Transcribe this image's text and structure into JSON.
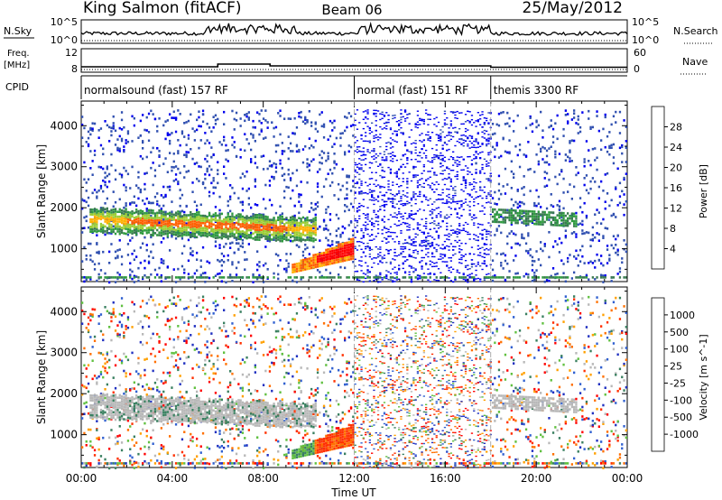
{
  "header": {
    "station": "King Salmon (fitACF)",
    "beam": "Beam 06",
    "date": "25/May/2012"
  },
  "top_panels": {
    "nsky_label": "N.Sky",
    "nsky_ticks": [
      "10^5",
      "10^0"
    ],
    "nsearch_label": "N.Search",
    "nsearch_ticks": [
      "10^5",
      "10^0"
    ],
    "freq_label_1": "Freq.",
    "freq_label_2": "[MHz]",
    "freq_ticks": [
      "12",
      "8"
    ],
    "nave_label": "Nave",
    "nave_ticks": [
      "60",
      "0"
    ],
    "cpid_label": "CPID"
  },
  "cpid_segments": [
    {
      "name": "normalsound (fast) 157 RF",
      "start_h": 0,
      "end_h": 12
    },
    {
      "name": "normal (fast) 151 RF",
      "start_h": 12,
      "end_h": 18
    },
    {
      "name": "themis 3300 RF",
      "start_h": 18,
      "end_h": 24
    }
  ],
  "chart_data": [
    {
      "type": "heatmap",
      "title": "Power",
      "ylabel": "Slant Range [km]",
      "xlabel": "Time UT",
      "ylim": [
        200,
        4600
      ],
      "y_ticks": [
        "4000",
        "3000",
        "2000",
        "1000"
      ],
      "y_tick_values": [
        4000,
        3000,
        2000,
        1000
      ],
      "x_ticks": [
        "00:00",
        "04:00",
        "08:00",
        "12:00",
        "16:00",
        "20:00",
        "00:00"
      ],
      "x_tick_values": [
        0,
        4,
        8,
        12,
        16,
        20,
        24
      ],
      "colorbar": {
        "label": "Power [dB]",
        "ticks": [
          "28",
          "24",
          "20",
          "16",
          "12",
          "8",
          "4"
        ],
        "colors": [
          "#0000ee",
          "#3050b0",
          "#3a7a50",
          "#2f9b3f",
          "#9acd32",
          "#ffb000",
          "#ff6000",
          "#ff0000"
        ]
      },
      "features": [
        {
          "name": "main echo band",
          "t_start": 0.3,
          "t_end": 10.0,
          "range_start": 1800,
          "range_end": 1500
        },
        {
          "name": "strong echo",
          "t_start": 9.2,
          "t_end": 12.0,
          "range_start": 500,
          "range_end": 1100
        }
      ]
    },
    {
      "type": "heatmap",
      "title": "Velocity",
      "ylabel": "Slant Range [km]",
      "xlabel": "Time UT",
      "ylim": [
        200,
        4600
      ],
      "y_ticks": [
        "4000",
        "3000",
        "2000",
        "1000"
      ],
      "y_tick_values": [
        4000,
        3000,
        2000,
        1000
      ],
      "x_ticks": [
        "00:00",
        "04:00",
        "08:00",
        "12:00",
        "16:00",
        "20:00",
        "00:00"
      ],
      "x_tick_values": [
        0,
        4,
        8,
        12,
        16,
        20,
        24
      ],
      "colorbar": {
        "label": "Velocity [m s^-1]",
        "ticks": [
          "1000",
          "500",
          "100",
          "25",
          "-25",
          "-100",
          "-500",
          "-1000"
        ],
        "colors": [
          "#2030c0",
          "#3060d0",
          "#3a8060",
          "#60c040",
          "#b8b8b8",
          "#ffa000",
          "#ff7000",
          "#ff3000",
          "#ff0000"
        ]
      }
    }
  ],
  "axis_labels": {
    "x_title": "Time UT"
  }
}
